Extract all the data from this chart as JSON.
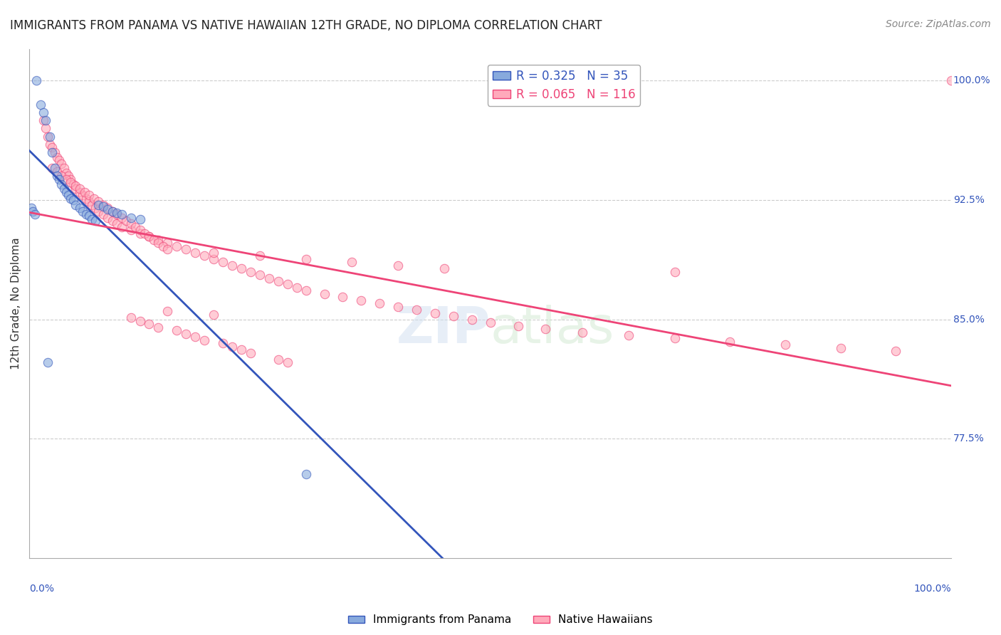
{
  "title": "IMMIGRANTS FROM PANAMA VS NATIVE HAWAIIAN 12TH GRADE, NO DIPLOMA CORRELATION CHART",
  "source": "Source: ZipAtlas.com",
  "xlabel_bottom_left": "0.0%",
  "xlabel_bottom_right": "100.0%",
  "ylabel": "12th Grade, No Diploma",
  "right_ytick_labels": [
    "100.0%",
    "92.5%",
    "85.0%",
    "77.5%"
  ],
  "right_ytick_values": [
    1.0,
    0.925,
    0.85,
    0.775
  ],
  "legend_entries": [
    {
      "label": "R = 0.325   N = 35",
      "color": "#6699cc"
    },
    {
      "label": "R = 0.065   N = 116",
      "color": "#ff99aa"
    }
  ],
  "blue_R": 0.325,
  "blue_N": 35,
  "pink_R": 0.065,
  "pink_N": 116,
  "watermark": "ZIPatlas",
  "blue_scatter_x": [
    0.008,
    0.012,
    0.015,
    0.018,
    0.022,
    0.025,
    0.028,
    0.03,
    0.032,
    0.035,
    0.038,
    0.04,
    0.042,
    0.045,
    0.048,
    0.05,
    0.055,
    0.058,
    0.062,
    0.065,
    0.068,
    0.072,
    0.075,
    0.08,
    0.085,
    0.09,
    0.095,
    0.1,
    0.11,
    0.12,
    0.002,
    0.004,
    0.006,
    0.02,
    0.3
  ],
  "blue_scatter_y": [
    1.0,
    0.985,
    0.98,
    0.975,
    0.965,
    0.955,
    0.945,
    0.94,
    0.938,
    0.935,
    0.932,
    0.93,
    0.928,
    0.926,
    0.925,
    0.922,
    0.92,
    0.918,
    0.916,
    0.915,
    0.913,
    0.912,
    0.922,
    0.921,
    0.919,
    0.918,
    0.917,
    0.916,
    0.914,
    0.913,
    0.92,
    0.918,
    0.916,
    0.823,
    0.753
  ],
  "pink_scatter_x": [
    0.015,
    0.018,
    0.02,
    0.022,
    0.025,
    0.028,
    0.03,
    0.032,
    0.035,
    0.038,
    0.04,
    0.042,
    0.045,
    0.048,
    0.05,
    0.055,
    0.058,
    0.062,
    0.065,
    0.068,
    0.072,
    0.075,
    0.08,
    0.085,
    0.09,
    0.095,
    0.1,
    0.11,
    0.12,
    0.13,
    0.14,
    0.15,
    0.16,
    0.17,
    0.18,
    0.19,
    0.2,
    0.21,
    0.22,
    0.23,
    0.24,
    0.25,
    0.26,
    0.27,
    0.28,
    0.29,
    0.3,
    0.32,
    0.34,
    0.36,
    0.38,
    0.4,
    0.42,
    0.44,
    0.46,
    0.48,
    0.5,
    0.53,
    0.56,
    0.6,
    0.65,
    0.7,
    0.76,
    0.82,
    0.88,
    0.94,
    1.0,
    0.025,
    0.03,
    0.035,
    0.04,
    0.045,
    0.05,
    0.055,
    0.06,
    0.065,
    0.07,
    0.075,
    0.08,
    0.085,
    0.09,
    0.095,
    0.1,
    0.105,
    0.11,
    0.115,
    0.12,
    0.125,
    0.13,
    0.135,
    0.14,
    0.145,
    0.15,
    0.2,
    0.25,
    0.3,
    0.35,
    0.4,
    0.45,
    0.7,
    0.15,
    0.2,
    0.11,
    0.12,
    0.13,
    0.14,
    0.16,
    0.17,
    0.18,
    0.19,
    0.21,
    0.22,
    0.23,
    0.24,
    0.27,
    0.28
  ],
  "pink_scatter_y": [
    0.975,
    0.97,
    0.965,
    0.96,
    0.958,
    0.955,
    0.952,
    0.95,
    0.948,
    0.945,
    0.942,
    0.94,
    0.938,
    0.935,
    0.932,
    0.93,
    0.928,
    0.926,
    0.924,
    0.922,
    0.92,
    0.918,
    0.916,
    0.914,
    0.912,
    0.91,
    0.908,
    0.906,
    0.904,
    0.902,
    0.9,
    0.898,
    0.896,
    0.894,
    0.892,
    0.89,
    0.888,
    0.886,
    0.884,
    0.882,
    0.88,
    0.878,
    0.876,
    0.874,
    0.872,
    0.87,
    0.868,
    0.866,
    0.864,
    0.862,
    0.86,
    0.858,
    0.856,
    0.854,
    0.852,
    0.85,
    0.848,
    0.846,
    0.844,
    0.842,
    0.84,
    0.838,
    0.836,
    0.834,
    0.832,
    0.83,
    1.0,
    0.945,
    0.943,
    0.94,
    0.938,
    0.936,
    0.934,
    0.932,
    0.93,
    0.928,
    0.926,
    0.924,
    0.922,
    0.92,
    0.918,
    0.916,
    0.914,
    0.912,
    0.91,
    0.908,
    0.906,
    0.904,
    0.902,
    0.9,
    0.898,
    0.896,
    0.894,
    0.892,
    0.89,
    0.888,
    0.886,
    0.884,
    0.882,
    0.88,
    0.855,
    0.853,
    0.851,
    0.849,
    0.847,
    0.845,
    0.843,
    0.841,
    0.839,
    0.837,
    0.835,
    0.833,
    0.831,
    0.829,
    0.825,
    0.823
  ],
  "xlim": [
    0.0,
    1.0
  ],
  "ylim": [
    0.7,
    1.02
  ],
  "blue_line_color": "#3355bb",
  "pink_line_color": "#ee4477",
  "blue_scatter_color": "#88aadd",
  "pink_scatter_color": "#ffaabb",
  "scatter_alpha": 0.6,
  "scatter_size": 80,
  "grid_color": "#cccccc",
  "title_fontsize": 12,
  "axis_label_color": "#333333",
  "right_label_color": "#3355bb",
  "source_color": "#888888"
}
